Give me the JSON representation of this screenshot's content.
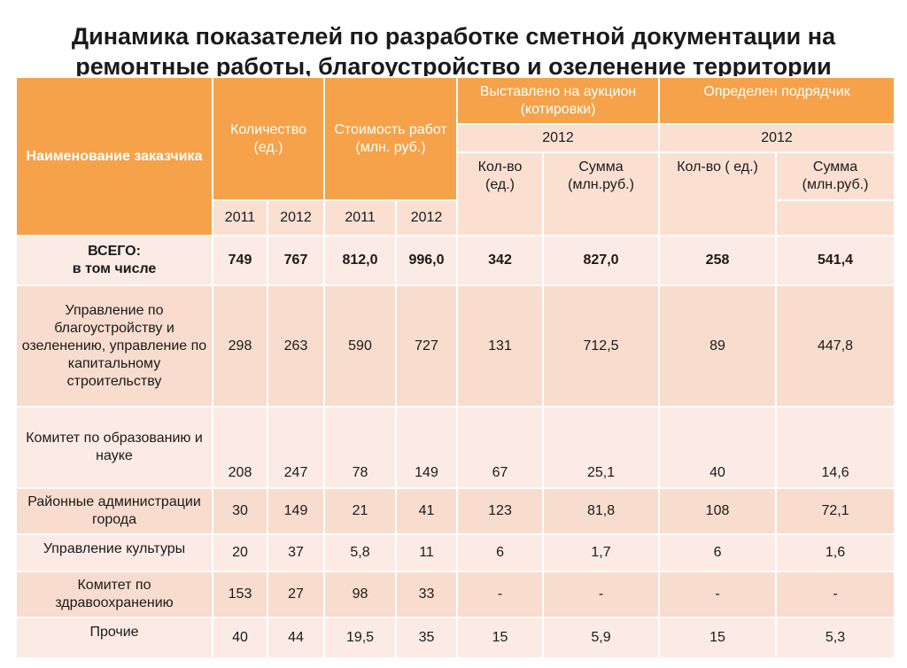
{
  "title": {
    "line1": "Динамика показателей по разработке сметной документации на",
    "line2": "ремонтные работы, благоустройство и озеленение территории"
  },
  "header": {
    "customer": "Наименование заказчика",
    "quantity": "Количество (ед.)",
    "cost": "Стоимость работ    (млн. руб.)",
    "auction": "Выставлено на аукцион (котировки)",
    "contractor": "Определен подрядчик",
    "year_auction": "2012",
    "year_contractor": "2012",
    "auction_count": "Кол-во (ед.)",
    "auction_sum": "Сумма (млн.руб.)",
    "contractor_count": "Кол-во ( ед.)",
    "contractor_sum": "Сумма (млн.руб.)",
    "q2011": "2011",
    "q2012": "2012",
    "c2011": "2011",
    "c2012": "2012"
  },
  "total": {
    "name_line1": "ВСЕГО:",
    "name_line2": "в том числе",
    "q2011": "749",
    "q2012": "767",
    "c2011": "812,0",
    "c2012": "996,0",
    "a_count": "342",
    "a_sum": "827,0",
    "k_count": "258",
    "k_sum": "541,4"
  },
  "rows": [
    {
      "name": "Управление по благоустройству  и озеленению, управление по капитальному строительству",
      "q2011": "298",
      "q2012": "263",
      "c2011": "590",
      "c2012": "727",
      "a_count": "131",
      "a_sum": "712,5",
      "k_count": "89",
      "k_sum": "447,8"
    },
    {
      "name": "Комитет по образованию и науке",
      "q2011": "208",
      "q2012": "247",
      "c2011": "78",
      "c2012": "149",
      "a_count": "67",
      "a_sum": "25,1",
      "k_count": "40",
      "k_sum": "14,6"
    },
    {
      "name": "Районные администрации города",
      "q2011": "30",
      "q2012": "149",
      "c2011": "21",
      "c2012": "41",
      "a_count": "123",
      "a_sum": "81,8",
      "k_count": "108",
      "k_sum": "72,1"
    },
    {
      "name": "Управление культуры",
      "q2011": "20",
      "q2012": "37",
      "c2011": "5,8",
      "c2012": "11",
      "a_count": "6",
      "a_sum": "1,7",
      "k_count": "6",
      "k_sum": "1,6"
    },
    {
      "name": "Комитет по здравоохранению",
      "q2011": "153",
      "q2012": "27",
      "c2011": "98",
      "c2012": "33",
      "a_count": "-",
      "a_sum": "-",
      "k_count": "-",
      "k_sum": "-"
    },
    {
      "name": "Прочие",
      "q2011": "40",
      "q2012": "44",
      "c2011": "19,5",
      "c2012": "35",
      "a_count": "15",
      "a_sum": "5,9",
      "k_count": "15",
      "k_sum": "5,3"
    }
  ]
}
